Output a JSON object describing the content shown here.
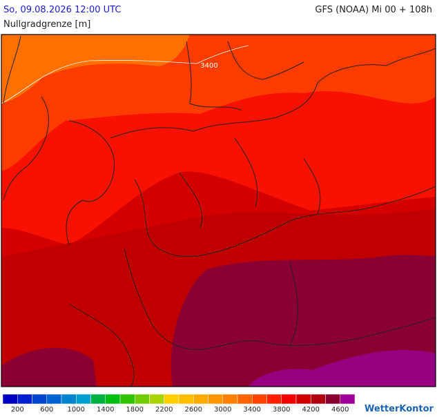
{
  "header": {
    "date": "So, 09.08.2026 12:00 UTC",
    "model": "GFS (NOAA) Mi 00 + 108h",
    "parameter": "Nullgradgrenze [m]"
  },
  "map": {
    "contour_label": "3400"
  },
  "legend": {
    "colors": [
      "#0000c0",
      "#0020d0",
      "#0044d0",
      "#0064d0",
      "#0084d0",
      "#00a0d0",
      "#00b040",
      "#00be10",
      "#30c400",
      "#70cc00",
      "#a8d400",
      "#ffd000",
      "#ffbe00",
      "#ffaa00",
      "#ff9600",
      "#ff8000",
      "#ff6400",
      "#ff4400",
      "#ff2000",
      "#f00000",
      "#d00000",
      "#b00010",
      "#8c0030",
      "#a0009a"
    ],
    "labels": [
      "200",
      "600",
      "1000",
      "1400",
      "1800",
      "2200",
      "2600",
      "3000",
      "3400",
      "3800",
      "4200",
      "4600"
    ]
  },
  "brand": "WetterKontor"
}
